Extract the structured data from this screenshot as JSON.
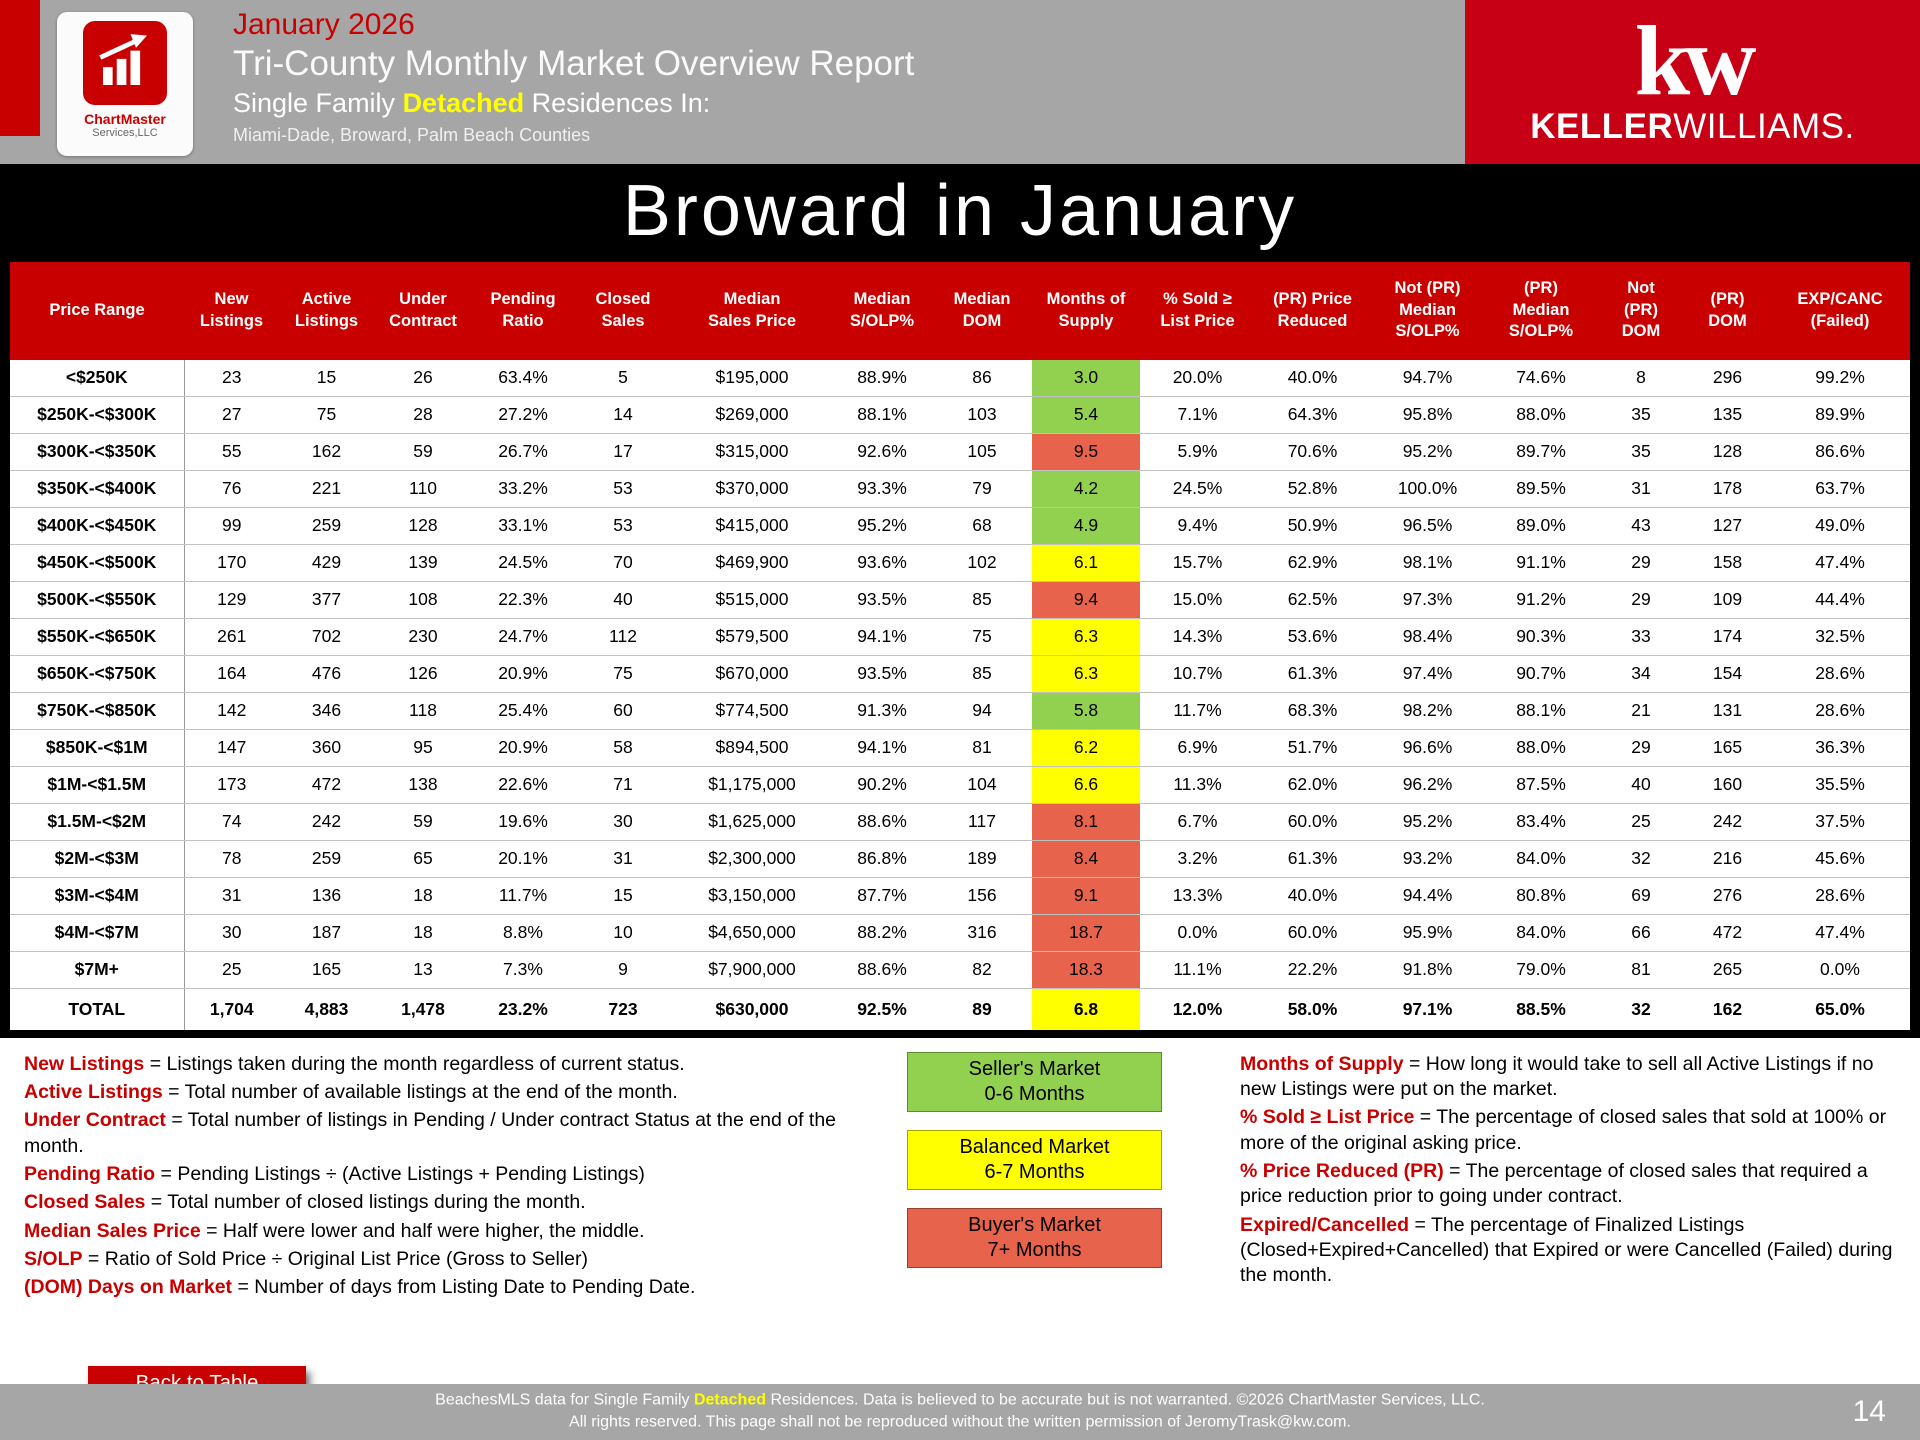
{
  "colors": {
    "accent_red": "#c80000",
    "header_gray": "#a6a6a6",
    "sellers_green": "#92d050",
    "balanced_yellow": "#ffff00",
    "buyers_salmon": "#e8634c",
    "highlight_yellow": "#ffff00"
  },
  "header": {
    "date": "January 2026",
    "title": "Tri-County Monthly Market Overview Report",
    "subtitle": {
      "prefix": "Single Family ",
      "highlight": "Detached",
      "suffix": " Residences In:"
    },
    "counties": "Miami-Dade, Broward, Palm Beach Counties",
    "chartmaster_logo": {
      "line1": "ChartMaster",
      "line2": "Services,LLC"
    },
    "kw_logo": {
      "mark": "kw",
      "name_bold": "KELLER",
      "name_light": "WILLIAMS."
    }
  },
  "table": {
    "title": "Broward in January",
    "columns": [
      "Price Range",
      "New\nListings",
      "Active\nListings",
      "Under\nContract",
      "Pending\nRatio",
      "Closed\nSales",
      "Median\nSales Price",
      "Median\nS/OLP%",
      "Median\nDOM",
      "Months of\nSupply",
      "% Sold ≥\nList Price",
      "(PR) Price\nReduced",
      "Not (PR)\nMedian\nS/OLP%",
      "(PR)\nMedian\nS/OLP%",
      "Not\n(PR)\nDOM",
      "(PR)\nDOM",
      "EXP/CANC\n(Failed)"
    ],
    "rows": [
      {
        "cells": [
          "<$250K",
          "23",
          "15",
          "26",
          "63.4%",
          "5",
          "$195,000",
          "88.9%",
          "86",
          "3.0",
          "20.0%",
          "40.0%",
          "94.7%",
          "74.6%",
          "8",
          "296",
          "99.2%"
        ],
        "supply": "green"
      },
      {
        "cells": [
          "$250K-<$300K",
          "27",
          "75",
          "28",
          "27.2%",
          "14",
          "$269,000",
          "88.1%",
          "103",
          "5.4",
          "7.1%",
          "64.3%",
          "95.8%",
          "88.0%",
          "35",
          "135",
          "89.9%"
        ],
        "supply": "green"
      },
      {
        "cells": [
          "$300K-<$350K",
          "55",
          "162",
          "59",
          "26.7%",
          "17",
          "$315,000",
          "92.6%",
          "105",
          "9.5",
          "5.9%",
          "70.6%",
          "95.2%",
          "89.7%",
          "35",
          "128",
          "86.6%"
        ],
        "supply": "salmon"
      },
      {
        "cells": [
          "$350K-<$400K",
          "76",
          "221",
          "110",
          "33.2%",
          "53",
          "$370,000",
          "93.3%",
          "79",
          "4.2",
          "24.5%",
          "52.8%",
          "100.0%",
          "89.5%",
          "31",
          "178",
          "63.7%"
        ],
        "supply": "green"
      },
      {
        "cells": [
          "$400K-<$450K",
          "99",
          "259",
          "128",
          "33.1%",
          "53",
          "$415,000",
          "95.2%",
          "68",
          "4.9",
          "9.4%",
          "50.9%",
          "96.5%",
          "89.0%",
          "43",
          "127",
          "49.0%"
        ],
        "supply": "green"
      },
      {
        "cells": [
          "$450K-<$500K",
          "170",
          "429",
          "139",
          "24.5%",
          "70",
          "$469,900",
          "93.6%",
          "102",
          "6.1",
          "15.7%",
          "62.9%",
          "98.1%",
          "91.1%",
          "29",
          "158",
          "47.4%"
        ],
        "supply": "yellow"
      },
      {
        "cells": [
          "$500K-<$550K",
          "129",
          "377",
          "108",
          "22.3%",
          "40",
          "$515,000",
          "93.5%",
          "85",
          "9.4",
          "15.0%",
          "62.5%",
          "97.3%",
          "91.2%",
          "29",
          "109",
          "44.4%"
        ],
        "supply": "salmon"
      },
      {
        "cells": [
          "$550K-<$650K",
          "261",
          "702",
          "230",
          "24.7%",
          "112",
          "$579,500",
          "94.1%",
          "75",
          "6.3",
          "14.3%",
          "53.6%",
          "98.4%",
          "90.3%",
          "33",
          "174",
          "32.5%"
        ],
        "supply": "yellow"
      },
      {
        "cells": [
          "$650K-<$750K",
          "164",
          "476",
          "126",
          "20.9%",
          "75",
          "$670,000",
          "93.5%",
          "85",
          "6.3",
          "10.7%",
          "61.3%",
          "97.4%",
          "90.7%",
          "34",
          "154",
          "28.6%"
        ],
        "supply": "yellow"
      },
      {
        "cells": [
          "$750K-<$850K",
          "142",
          "346",
          "118",
          "25.4%",
          "60",
          "$774,500",
          "91.3%",
          "94",
          "5.8",
          "11.7%",
          "68.3%",
          "98.2%",
          "88.1%",
          "21",
          "131",
          "28.6%"
        ],
        "supply": "green"
      },
      {
        "cells": [
          "$850K-<$1M",
          "147",
          "360",
          "95",
          "20.9%",
          "58",
          "$894,500",
          "94.1%",
          "81",
          "6.2",
          "6.9%",
          "51.7%",
          "96.6%",
          "88.0%",
          "29",
          "165",
          "36.3%"
        ],
        "supply": "yellow"
      },
      {
        "cells": [
          "$1M-<$1.5M",
          "173",
          "472",
          "138",
          "22.6%",
          "71",
          "$1,175,000",
          "90.2%",
          "104",
          "6.6",
          "11.3%",
          "62.0%",
          "96.2%",
          "87.5%",
          "40",
          "160",
          "35.5%"
        ],
        "supply": "yellow"
      },
      {
        "cells": [
          "$1.5M-<$2M",
          "74",
          "242",
          "59",
          "19.6%",
          "30",
          "$1,625,000",
          "88.6%",
          "117",
          "8.1",
          "6.7%",
          "60.0%",
          "95.2%",
          "83.4%",
          "25",
          "242",
          "37.5%"
        ],
        "supply": "salmon"
      },
      {
        "cells": [
          "$2M-<$3M",
          "78",
          "259",
          "65",
          "20.1%",
          "31",
          "$2,300,000",
          "86.8%",
          "189",
          "8.4",
          "3.2%",
          "61.3%",
          "93.2%",
          "84.0%",
          "32",
          "216",
          "45.6%"
        ],
        "supply": "salmon"
      },
      {
        "cells": [
          "$3M-<$4M",
          "31",
          "136",
          "18",
          "11.7%",
          "15",
          "$3,150,000",
          "87.7%",
          "156",
          "9.1",
          "13.3%",
          "40.0%",
          "94.4%",
          "80.8%",
          "69",
          "276",
          "28.6%"
        ],
        "supply": "salmon"
      },
      {
        "cells": [
          "$4M-<$7M",
          "30",
          "187",
          "18",
          "8.8%",
          "10",
          "$4,650,000",
          "88.2%",
          "316",
          "18.7",
          "0.0%",
          "60.0%",
          "95.9%",
          "84.0%",
          "66",
          "472",
          "47.4%"
        ],
        "supply": "salmon"
      },
      {
        "cells": [
          "$7M+",
          "25",
          "165",
          "13",
          "7.3%",
          "9",
          "$7,900,000",
          "88.6%",
          "82",
          "18.3",
          "11.1%",
          "22.2%",
          "91.8%",
          "79.0%",
          "81",
          "265",
          "0.0%"
        ],
        "supply": "salmon"
      },
      {
        "cells": [
          "TOTAL",
          "1,704",
          "4,883",
          "1,478",
          "23.2%",
          "723",
          "$630,000",
          "92.5%",
          "89",
          "6.8",
          "12.0%",
          "58.0%",
          "97.1%",
          "88.5%",
          "32",
          "162",
          "65.0%"
        ],
        "supply": "yellow",
        "total": true
      }
    ]
  },
  "definitions": {
    "left": [
      {
        "term": "New Listings",
        "text": " = Listings taken during the month regardless of current status."
      },
      {
        "term": "Active Listings",
        "text": " = Total number of available listings at the end of the month."
      },
      {
        "term": "Under Contract",
        "text": " = Total number of listings in Pending / Under contract Status at the end of the month."
      },
      {
        "term": "Pending Ratio",
        "text": " = Pending Listings ÷ (Active Listings + Pending Listings)"
      },
      {
        "term": "Closed Sales",
        "text": " = Total number of closed listings during the month."
      },
      {
        "term": "Median Sales Price",
        "text": " = Half were lower and half were higher, the middle."
      },
      {
        "term": "S/OLP",
        "text": " = Ratio of Sold Price ÷ Original List Price (Gross to Seller)"
      },
      {
        "term": "(DOM) Days on Market",
        "text": " = Number of days from Listing Date to Pending Date."
      }
    ],
    "right": [
      {
        "term": "Months of Supply",
        "text": " = How long it would take to sell all Active Listings if no new Listings were put on the market."
      },
      {
        "term": "% Sold ≥ List Price",
        "text": " = The percentage of closed sales that sold at 100% or more of the original asking price."
      },
      {
        "term": "% Price Reduced (PR)",
        "text": " = The percentage of closed sales that required a price reduction prior to going under contract."
      },
      {
        "term": "Expired/Cancelled",
        "text": " = The percentage of Finalized Listings (Closed+Expired+Cancelled) that Expired or were Cancelled (Failed) during the month."
      }
    ]
  },
  "legend": {
    "items": [
      {
        "color": "green",
        "line1": "Seller's Market",
        "line2": "0-6 Months"
      },
      {
        "color": "yellow",
        "line1": "Balanced Market",
        "line2": "6-7 Months"
      },
      {
        "color": "salmon",
        "line1": "Buyer's Market",
        "line2": "7+ Months"
      }
    ]
  },
  "footer": {
    "back_button": "Back to Table\nof Contents",
    "disclaimer": {
      "line1_prefix": "BeachesMLS data for Single Family ",
      "line1_highlight": "Detached",
      "line1_suffix": " Residences.  Data is believed to be accurate but is not warranted.  ©2026  ChartMaster Services, LLC.",
      "line2": "All rights reserved. This page shall not be reproduced without the written permission of JeromyTrask@kw.com."
    },
    "page_number": "14"
  }
}
